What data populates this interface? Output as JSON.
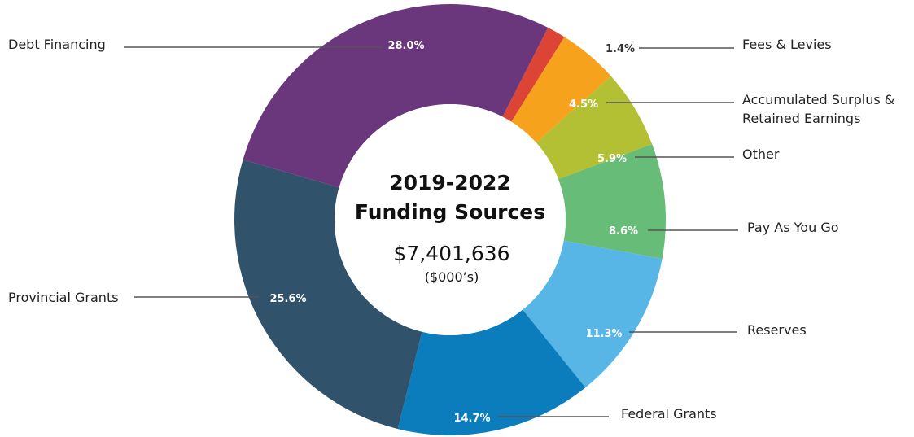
{
  "chart_data": {
    "type": "pie",
    "donut": true,
    "title_lines": [
      "2019-2022",
      "Funding Sources"
    ],
    "total": "$7,401,636",
    "units": "($000’s)",
    "slices": [
      {
        "category": "Fees & Levies",
        "value": 1.4,
        "label": "1.4%",
        "color": "#dc4436"
      },
      {
        "category": "Accumulated Surplus & Retained Earnings",
        "label_lines": [
          "Accumulated Surplus &",
          "Retained Earnings"
        ],
        "value": 4.5,
        "label": "4.5%",
        "color": "#f6a21d"
      },
      {
        "category": "Other",
        "value": 5.9,
        "label": "5.9%",
        "color": "#b3c034"
      },
      {
        "category": "Pay As You Go",
        "value": 8.6,
        "label": "8.6%",
        "color": "#67bc77"
      },
      {
        "category": "Reserves",
        "value": 11.3,
        "label": "11.3%",
        "color": "#58b6e6"
      },
      {
        "category": "Federal Grants",
        "value": 14.7,
        "label": "14.7%",
        "color": "#0b7dbc"
      },
      {
        "category": "Provincial Grants",
        "value": 25.6,
        "label": "25.6%",
        "color": "#30536b"
      },
      {
        "category": "Debt Financing",
        "value": 28.0,
        "label": "28.0%",
        "color": "#6a377c"
      }
    ]
  }
}
